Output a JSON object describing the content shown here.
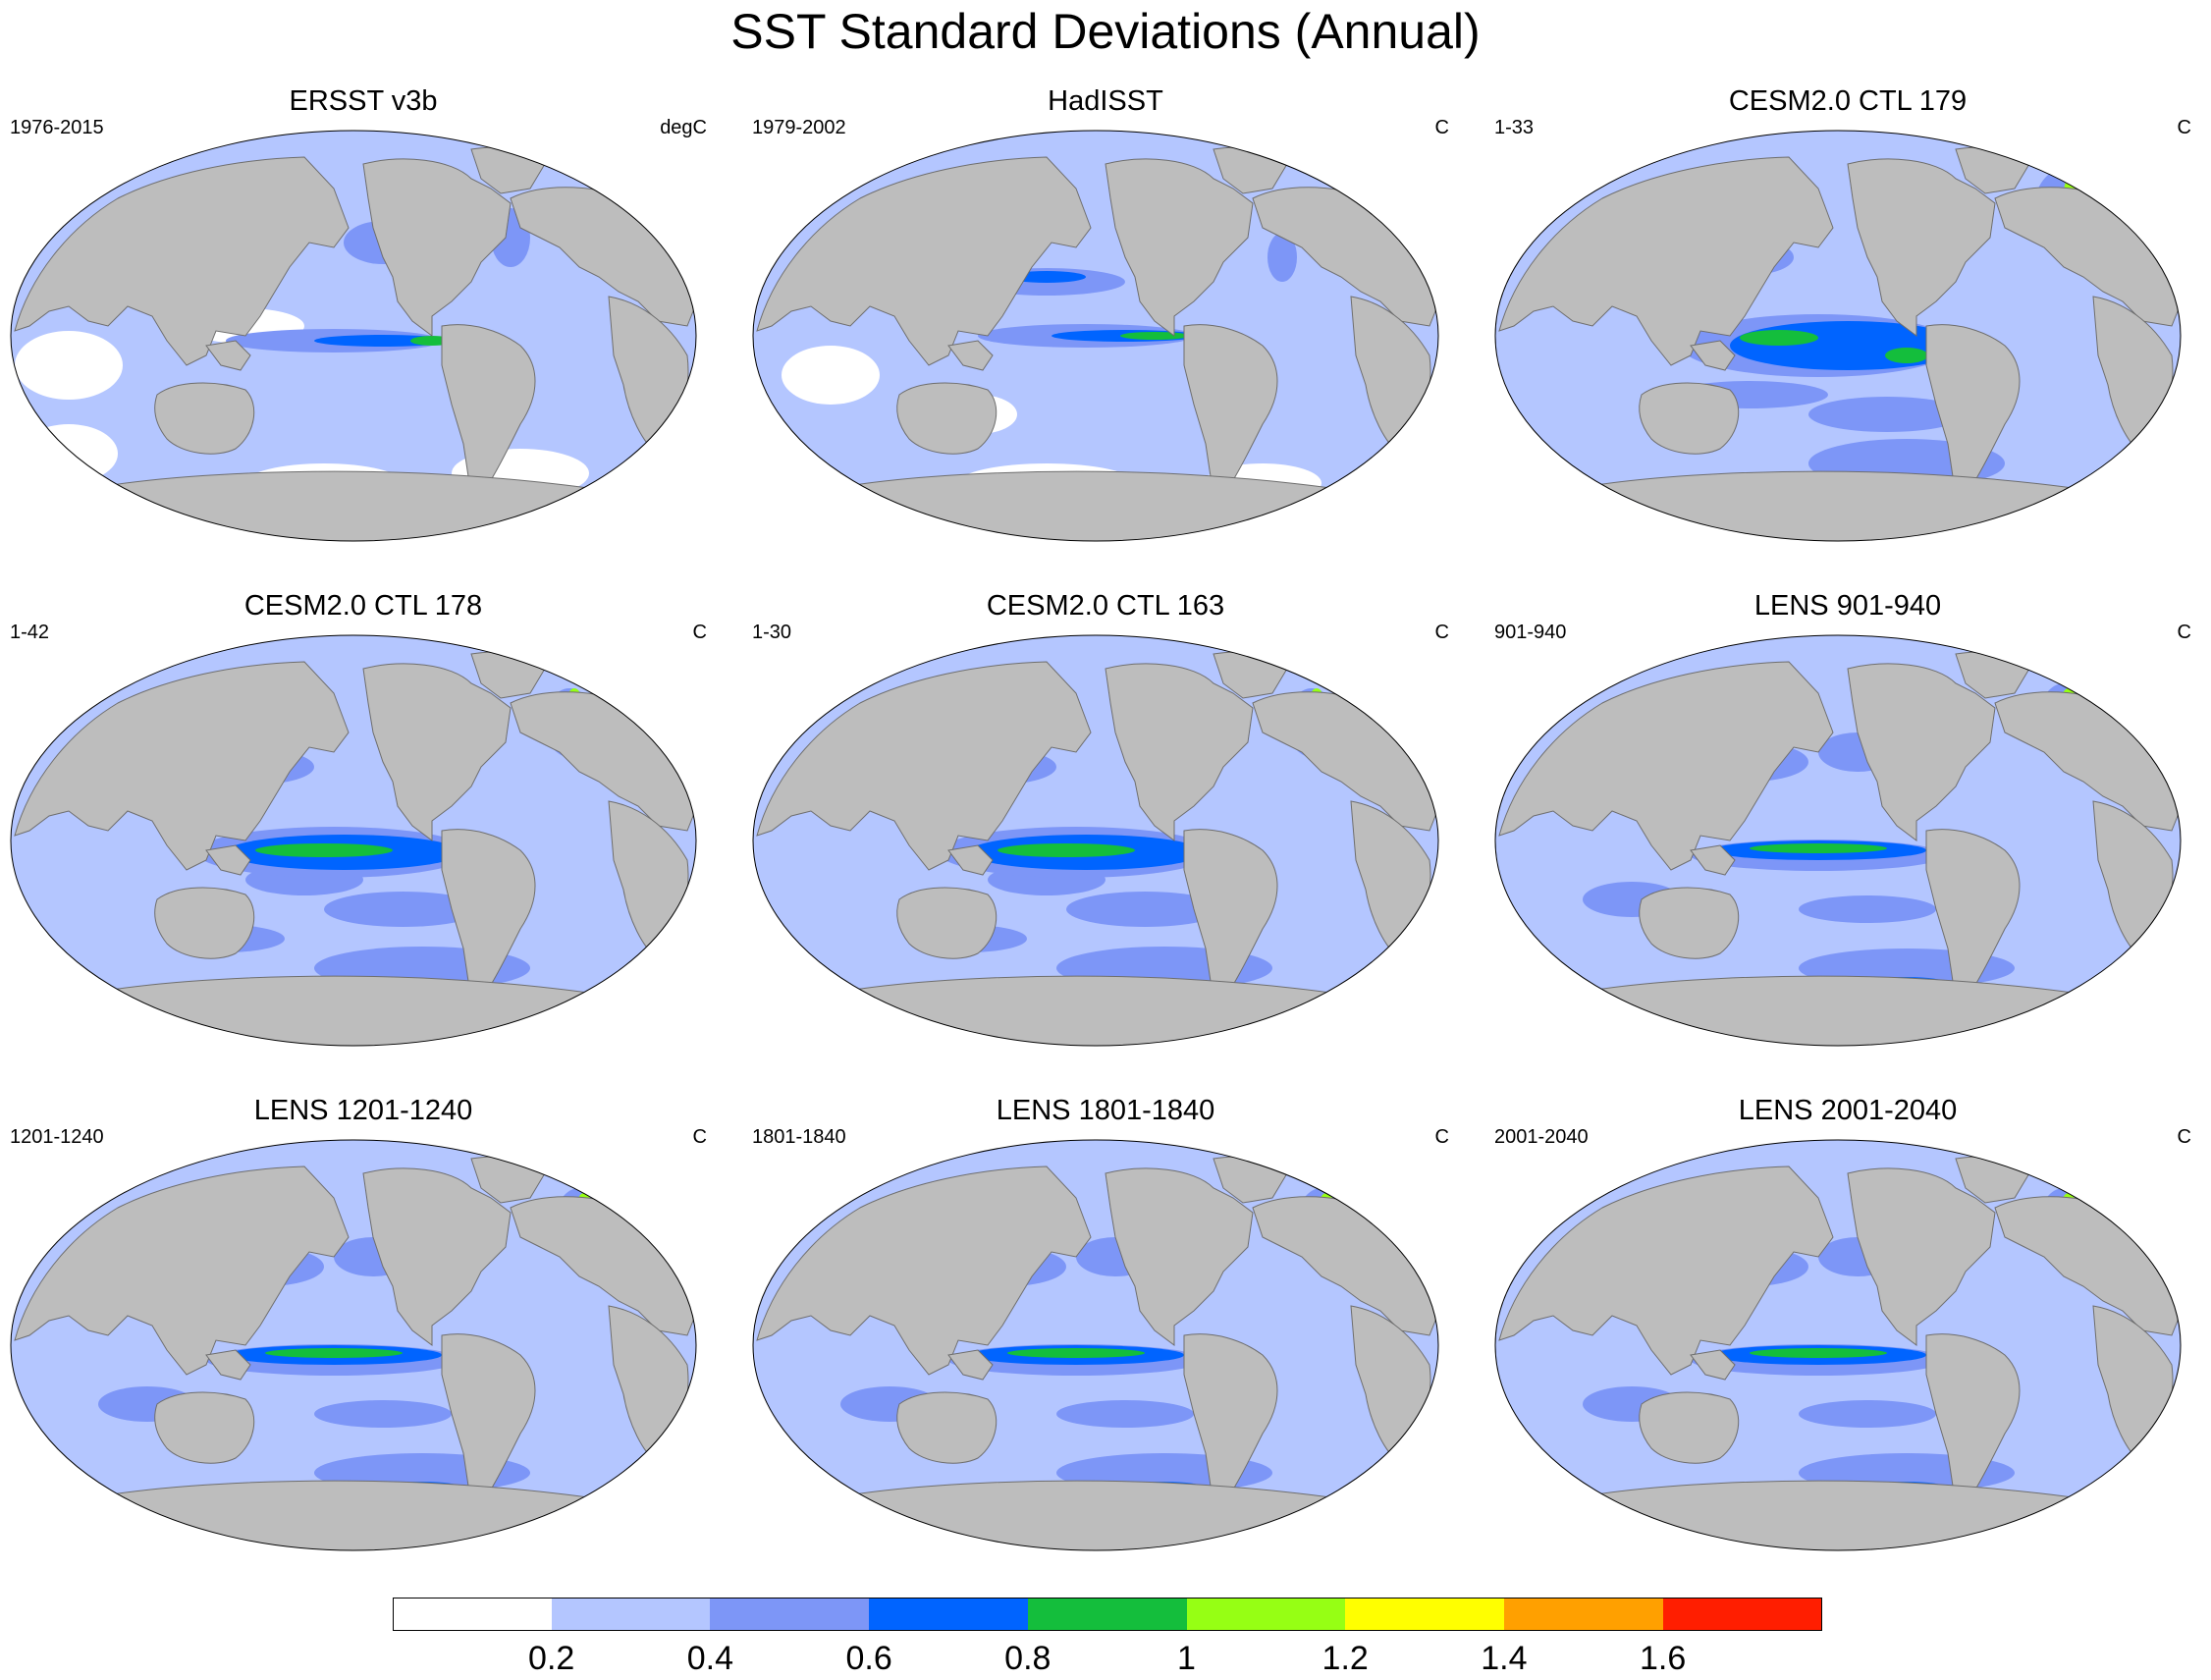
{
  "title": "SST Standard Deviations (Annual)",
  "colors": {
    "land": "#bdbdbd",
    "coast": "#6e6e6e",
    "levels": [
      "#ffffff",
      "#b4c6ff",
      "#7d96f7",
      "#0064ff",
      "#14be3c",
      "#96ff14",
      "#ffff00",
      "#ffa000",
      "#ff1e00"
    ]
  },
  "panels": [
    {
      "title": "ERSST v3b",
      "left": "1976-2015",
      "right": "degC",
      "variant": "obs1"
    },
    {
      "title": "HadISST",
      "left": "1979-2002",
      "right": "C",
      "variant": "obs2"
    },
    {
      "title": "CESM2.0 CTL 179",
      "left": "1-33",
      "right": "C",
      "variant": "m1"
    },
    {
      "title": "CESM2.0 CTL 178",
      "left": "1-42",
      "right": "C",
      "variant": "m2"
    },
    {
      "title": "CESM2.0 CTL 163",
      "left": "1-30",
      "right": "C",
      "variant": "m2"
    },
    {
      "title": "LENS 901-940",
      "left": "901-940",
      "right": "C",
      "variant": "m3"
    },
    {
      "title": "LENS 1201-1240",
      "left": "1201-1240",
      "right": "C",
      "variant": "m3"
    },
    {
      "title": "LENS 1801-1840",
      "left": "1801-1840",
      "right": "C",
      "variant": "m3"
    },
    {
      "title": "LENS 2001-2040",
      "left": "2001-2040",
      "right": "C",
      "variant": "m3"
    }
  ],
  "colorbar": {
    "labels": [
      "0.2",
      "0.4",
      "0.6",
      "0.8",
      "1",
      "1.2",
      "1.4",
      "1.6"
    ]
  }
}
